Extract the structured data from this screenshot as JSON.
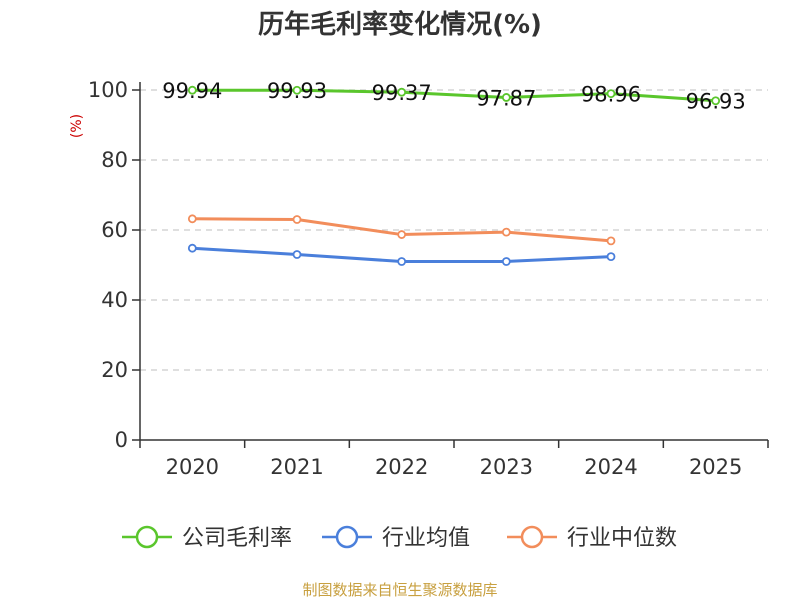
{
  "chart_data": {
    "type": "line",
    "title": "历年毛利率变化情况(%)",
    "ylabel": "(%)",
    "xlabel": "",
    "ylim": [
      0,
      100
    ],
    "yticks": [
      0,
      20,
      40,
      60,
      80,
      100
    ],
    "grid": "horizontal-dashed",
    "categories": [
      "2020",
      "2021",
      "2022",
      "2023",
      "2024",
      "2025"
    ],
    "series": [
      {
        "name": "公司毛利率",
        "color": "#5ac62c",
        "values": [
          99.94,
          99.93,
          99.37,
          97.87,
          98.96,
          96.93
        ],
        "labels": [
          "99.94",
          "99.93",
          "99.37",
          "97.87",
          "98.96",
          "96.93"
        ]
      },
      {
        "name": "行业均值",
        "color": "#4a7fdb",
        "values": [
          54.8,
          53.0,
          51.0,
          51.0,
          52.4,
          null
        ]
      },
      {
        "name": "行业中位数",
        "color": "#f28d5b",
        "values": [
          63.2,
          63.0,
          58.7,
          59.4,
          56.9,
          null
        ]
      }
    ],
    "legend_position": "bottom",
    "source": "制图数据来自恒生聚源数据库"
  }
}
